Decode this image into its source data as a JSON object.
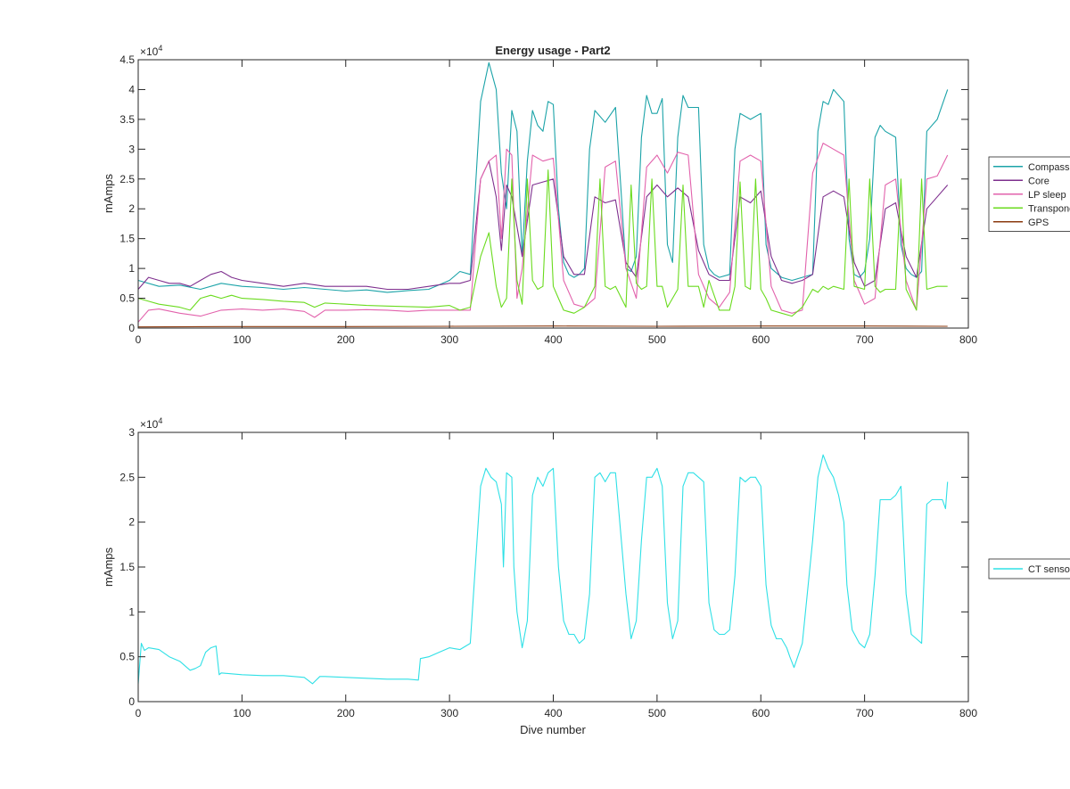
{
  "chart_data": [
    {
      "type": "line",
      "title": "Energy usage - Part2",
      "xlabel": "",
      "ylabel": "mAmps",
      "xlim": [
        0,
        800
      ],
      "ylim": [
        0,
        45000
      ],
      "exponent_label": "×10",
      "exponent_power": "4",
      "x_ticks": [
        "0",
        "100",
        "200",
        "300",
        "400",
        "500",
        "600",
        "700",
        "800"
      ],
      "y_ticks": [
        "0",
        "0.5",
        "1",
        "1.5",
        "2",
        "2.5",
        "3",
        "3.5",
        "4",
        "4.5"
      ],
      "grid": false,
      "legend_position": "right-outside",
      "series": [
        {
          "name": "Compass",
          "color": "#1ba3a8",
          "x": [
            0,
            20,
            40,
            60,
            80,
            100,
            120,
            140,
            160,
            180,
            200,
            220,
            240,
            260,
            280,
            300,
            310,
            320,
            330,
            338,
            345,
            350,
            355,
            360,
            365,
            370,
            375,
            380,
            385,
            390,
            395,
            400,
            405,
            410,
            415,
            420,
            425,
            430,
            435,
            440,
            450,
            460,
            465,
            470,
            475,
            480,
            485,
            490,
            495,
            500,
            505,
            510,
            515,
            520,
            525,
            530,
            540,
            545,
            550,
            555,
            560,
            570,
            575,
            580,
            590,
            600,
            605,
            610,
            620,
            630,
            640,
            650,
            655,
            660,
            665,
            670,
            680,
            685,
            690,
            695,
            700,
            705,
            710,
            715,
            720,
            730,
            735,
            740,
            745,
            750,
            755,
            760,
            770,
            780
          ],
          "y": [
            8000,
            7000,
            7200,
            6500,
            7500,
            7000,
            6800,
            6500,
            6800,
            6500,
            6200,
            6400,
            6000,
            6300,
            6500,
            8000,
            9500,
            9000,
            38000,
            44500,
            40000,
            26000,
            20000,
            36500,
            33000,
            12000,
            28000,
            36500,
            34000,
            33000,
            38000,
            37500,
            20000,
            11000,
            9000,
            8500,
            9000,
            10000,
            30000,
            36500,
            34500,
            37000,
            24000,
            10000,
            9500,
            12000,
            32000,
            39000,
            36000,
            36000,
            38500,
            14000,
            11000,
            32000,
            39000,
            37000,
            37000,
            14000,
            10000,
            9000,
            8500,
            9000,
            30000,
            36000,
            35000,
            36000,
            14000,
            10000,
            8500,
            8000,
            8500,
            9000,
            33000,
            38000,
            37500,
            40000,
            38000,
            15000,
            9000,
            8500,
            9500,
            15000,
            32000,
            34000,
            33000,
            32000,
            14000,
            10000,
            9000,
            8500,
            9500,
            33000,
            35000,
            40000
          ]
        },
        {
          "name": "Core",
          "color": "#7e2f8e",
          "x": [
            0,
            10,
            20,
            30,
            40,
            50,
            60,
            70,
            80,
            90,
            100,
            120,
            140,
            160,
            180,
            200,
            220,
            240,
            260,
            280,
            300,
            310,
            320,
            330,
            338,
            345,
            350,
            355,
            360,
            370,
            380,
            390,
            400,
            410,
            420,
            430,
            440,
            450,
            460,
            470,
            480,
            490,
            500,
            510,
            520,
            530,
            540,
            550,
            560,
            570,
            580,
            590,
            600,
            610,
            620,
            630,
            640,
            650,
            660,
            670,
            680,
            690,
            700,
            710,
            720,
            730,
            740,
            750,
            760,
            770,
            780
          ],
          "y": [
            6500,
            8500,
            8000,
            7500,
            7500,
            7000,
            8000,
            9000,
            9500,
            8500,
            8000,
            7500,
            7000,
            7500,
            7000,
            7000,
            7000,
            6500,
            6500,
            7000,
            7500,
            7500,
            8000,
            25000,
            28000,
            22000,
            13000,
            24000,
            22000,
            12000,
            24000,
            24500,
            25000,
            12000,
            9000,
            9000,
            22000,
            21000,
            21500,
            11000,
            8500,
            22000,
            24000,
            22000,
            23500,
            22000,
            13000,
            9000,
            8000,
            8000,
            22000,
            21000,
            23000,
            12000,
            8000,
            7500,
            8000,
            9000,
            22000,
            23000,
            22000,
            11000,
            7000,
            8000,
            20000,
            21000,
            12000,
            8500,
            20000,
            22000,
            24000
          ]
        },
        {
          "name": "LP sleep",
          "color": "#e262ac",
          "x": [
            0,
            10,
            20,
            40,
            60,
            80,
            100,
            120,
            140,
            160,
            170,
            180,
            200,
            220,
            240,
            260,
            280,
            300,
            320,
            330,
            338,
            345,
            350,
            355,
            360,
            365,
            370,
            380,
            390,
            400,
            410,
            420,
            430,
            440,
            450,
            460,
            470,
            480,
            490,
            500,
            510,
            520,
            530,
            540,
            550,
            560,
            570,
            580,
            590,
            600,
            610,
            620,
            630,
            640,
            650,
            660,
            670,
            680,
            690,
            700,
            710,
            720,
            730,
            740,
            750,
            760,
            770,
            780
          ],
          "y": [
            1000,
            3000,
            3200,
            2500,
            2000,
            3000,
            3200,
            3000,
            3200,
            2800,
            1800,
            3000,
            3000,
            3100,
            3000,
            2800,
            3000,
            3000,
            3000,
            25000,
            28000,
            29000,
            15000,
            30000,
            29000,
            5000,
            10000,
            29000,
            28000,
            28500,
            8000,
            4000,
            3500,
            5000,
            27000,
            28000,
            10000,
            5000,
            27000,
            29000,
            26000,
            29500,
            29000,
            9000,
            5000,
            3500,
            6000,
            28000,
            29000,
            28000,
            7000,
            3000,
            2500,
            3000,
            26000,
            31000,
            30000,
            29000,
            8000,
            4000,
            5000,
            24000,
            25000,
            8000,
            3000,
            25000,
            25500,
            29000
          ]
        },
        {
          "name": "Transponder",
          "color": "#6adb1e",
          "x": [
            0,
            10,
            20,
            40,
            50,
            60,
            70,
            80,
            90,
            100,
            120,
            140,
            160,
            170,
            180,
            200,
            220,
            240,
            260,
            280,
            300,
            310,
            320,
            330,
            338,
            345,
            350,
            355,
            360,
            365,
            370,
            375,
            380,
            385,
            390,
            395,
            400,
            405,
            410,
            420,
            430,
            440,
            445,
            450,
            455,
            460,
            470,
            475,
            480,
            485,
            490,
            495,
            500,
            505,
            510,
            520,
            525,
            530,
            540,
            545,
            550,
            560,
            570,
            575,
            580,
            585,
            590,
            595,
            600,
            605,
            610,
            620,
            630,
            640,
            650,
            655,
            660,
            665,
            670,
            680,
            685,
            690,
            700,
            705,
            710,
            715,
            720,
            730,
            735,
            740,
            750,
            755,
            760,
            770,
            780
          ],
          "y": [
            5000,
            4500,
            4000,
            3500,
            3000,
            5000,
            5500,
            5000,
            5500,
            5000,
            4800,
            4500,
            4300,
            3500,
            4200,
            4000,
            3800,
            3700,
            3600,
            3500,
            3800,
            3000,
            3500,
            12000,
            16000,
            7000,
            3500,
            5000,
            25000,
            8000,
            4000,
            25000,
            8000,
            6500,
            7000,
            26500,
            7000,
            5000,
            3000,
            2500,
            3500,
            7000,
            25000,
            7000,
            6500,
            7000,
            3500,
            24000,
            7500,
            6500,
            7000,
            25000,
            7000,
            7000,
            3500,
            6500,
            24000,
            7000,
            7000,
            3500,
            8000,
            3000,
            3000,
            7000,
            24500,
            7000,
            6500,
            25000,
            6500,
            5000,
            3000,
            2500,
            2000,
            3500,
            6500,
            6000,
            7000,
            6500,
            7000,
            6500,
            25000,
            7000,
            6500,
            25000,
            7000,
            6000,
            6500,
            6500,
            25000,
            6500,
            3000,
            25000,
            6500,
            7000,
            7000
          ]
        },
        {
          "name": "GPS",
          "color": "#8b3a0f",
          "x": [
            0,
            100,
            200,
            300,
            400,
            500,
            600,
            700,
            780
          ],
          "y": [
            200,
            250,
            250,
            300,
            350,
            300,
            350,
            350,
            300
          ]
        }
      ]
    },
    {
      "type": "line",
      "title": "",
      "xlabel": "Dive number",
      "ylabel": "mAmps",
      "xlim": [
        0,
        800
      ],
      "ylim": [
        0,
        30000
      ],
      "exponent_label": "×10",
      "exponent_power": "4",
      "x_ticks": [
        "0",
        "100",
        "200",
        "300",
        "400",
        "500",
        "600",
        "700",
        "800"
      ],
      "y_ticks": [
        "0",
        "0.5",
        "1",
        "1.5",
        "2",
        "2.5",
        "3"
      ],
      "grid": false,
      "legend_position": "right-outside",
      "series": [
        {
          "name": "CT sensor",
          "color": "#2fe0e6",
          "x": [
            0,
            3,
            6,
            10,
            20,
            30,
            40,
            50,
            55,
            60,
            65,
            70,
            75,
            78,
            80,
            90,
            100,
            120,
            140,
            160,
            168,
            175,
            180,
            200,
            220,
            240,
            260,
            270,
            272,
            280,
            290,
            300,
            310,
            320,
            330,
            335,
            340,
            345,
            350,
            352,
            355,
            360,
            362,
            365,
            370,
            375,
            380,
            385,
            390,
            395,
            400,
            405,
            410,
            415,
            420,
            425,
            430,
            435,
            440,
            445,
            450,
            455,
            460,
            470,
            475,
            480,
            485,
            490,
            495,
            500,
            505,
            510,
            515,
            520,
            525,
            530,
            535,
            540,
            545,
            550,
            555,
            560,
            565,
            570,
            575,
            580,
            585,
            590,
            595,
            600,
            605,
            610,
            615,
            620,
            625,
            628,
            632,
            640,
            650,
            655,
            660,
            665,
            670,
            675,
            680,
            683,
            688,
            695,
            700,
            705,
            710,
            715,
            720,
            725,
            730,
            735,
            740,
            745,
            750,
            755,
            760,
            765,
            770,
            775,
            778,
            780
          ],
          "y": [
            2000,
            6500,
            5700,
            6000,
            5800,
            5000,
            4500,
            3500,
            3700,
            4000,
            5500,
            6000,
            6200,
            3000,
            3200,
            3100,
            3000,
            2900,
            2900,
            2700,
            2000,
            2800,
            2800,
            2700,
            2600,
            2500,
            2500,
            2400,
            4800,
            5000,
            5500,
            6000,
            5800,
            6500,
            24000,
            26000,
            25000,
            24500,
            22000,
            15000,
            25500,
            25000,
            15000,
            10000,
            6000,
            9000,
            23000,
            25000,
            24000,
            25500,
            26000,
            15000,
            9000,
            7500,
            7500,
            6500,
            7000,
            12000,
            25000,
            25500,
            24500,
            25500,
            25500,
            12000,
            7000,
            9000,
            18000,
            25000,
            25000,
            26000,
            24000,
            11000,
            7000,
            9000,
            24000,
            25500,
            25500,
            25000,
            24500,
            11000,
            8000,
            7500,
            7500,
            8000,
            14000,
            25000,
            24500,
            25000,
            25000,
            24000,
            13000,
            8500,
            7000,
            7000,
            6000,
            5000,
            3800,
            6500,
            18000,
            25000,
            27500,
            26000,
            25000,
            23000,
            20000,
            13000,
            8000,
            6500,
            6000,
            7500,
            14000,
            22500,
            22500,
            22500,
            23000,
            24000,
            12000,
            7500,
            7000,
            6500,
            22000,
            22500,
            22500,
            22500,
            21500,
            24500
          ]
        }
      ]
    }
  ]
}
